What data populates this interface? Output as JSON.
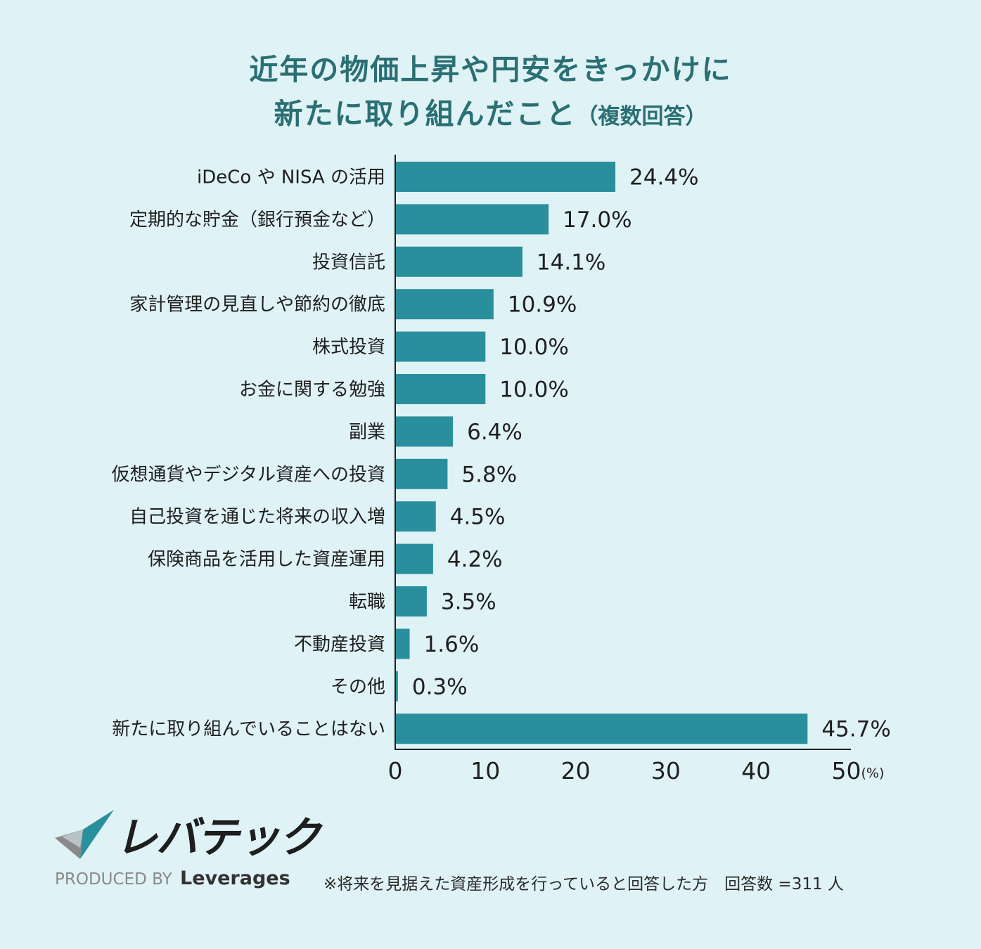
{
  "title": {
    "line1": "近年の物価上昇や円安をきっかけに",
    "line2": "新たに取り組んだこと",
    "line2_suffix": "（複数回答）"
  },
  "chart_data": {
    "type": "bar",
    "orientation": "horizontal",
    "title": "近年の物価上昇や円安をきっかけに新たに取り組んだこと（複数回答）",
    "categories": [
      "iDeCo や NISA の活用",
      "定期的な貯金（銀行預金など）",
      "投資信託",
      "家計管理の見直しや節約の徹底",
      "株式投資",
      "お金に関する勉強",
      "副業",
      "仮想通貨やデジタル資産への投資",
      "自己投資を通じた将来の収入増",
      "保険商品を活用した資産運用",
      "転職",
      "不動産投資",
      "その他",
      "新たに取り組んでいることはない"
    ],
    "values": [
      24.4,
      17.0,
      14.1,
      10.9,
      10.0,
      10.0,
      6.4,
      5.8,
      4.5,
      4.2,
      3.5,
      1.6,
      0.3,
      45.7
    ],
    "value_labels": [
      "24.4%",
      "17.0%",
      "14.1%",
      "10.9%",
      "10.0%",
      "10.0%",
      "6.4%",
      "5.8%",
      "4.5%",
      "4.2%",
      "3.5%",
      "1.6%",
      "0.3%",
      "45.7%"
    ],
    "xlim": [
      0,
      50
    ],
    "xticks": [
      "0",
      "10",
      "20",
      "30",
      "40",
      "50"
    ],
    "xunit": "(%)",
    "bar_color": "#2a8f9c",
    "grid": false
  },
  "logo": {
    "name": "レバテック",
    "produced_by": "PRODUCED BY",
    "brand": "Leverages",
    "colors": {
      "teal": "#2a8f9c",
      "gray": "#8a8a8a",
      "dark": "#333333"
    }
  },
  "footer_note": "※将来を見据えた資産形成を行っていると回答した方　回答数 =311 人"
}
